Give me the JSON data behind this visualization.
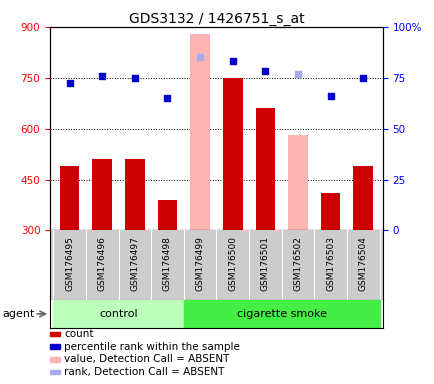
{
  "title": "GDS3132 / 1426751_s_at",
  "samples": [
    "GSM176495",
    "GSM176496",
    "GSM176497",
    "GSM176498",
    "GSM176499",
    "GSM176500",
    "GSM176501",
    "GSM176502",
    "GSM176503",
    "GSM176504"
  ],
  "count_values": [
    490,
    510,
    510,
    390,
    null,
    750,
    660,
    null,
    410,
    490
  ],
  "count_absent_values": [
    null,
    null,
    null,
    null,
    880,
    null,
    null,
    580,
    null,
    null
  ],
  "percentile_values": [
    735,
    755,
    750,
    690,
    null,
    800,
    770,
    null,
    695,
    750
  ],
  "percentile_absent_values": [
    null,
    null,
    null,
    null,
    810,
    null,
    null,
    760,
    null,
    null
  ],
  "ylim_left": [
    300,
    900
  ],
  "ylim_right": [
    0,
    100
  ],
  "yticks_left": [
    300,
    450,
    600,
    750,
    900
  ],
  "yticks_right": [
    0,
    25,
    50,
    75,
    100
  ],
  "ytick_labels_left": [
    "300",
    "450",
    "600",
    "750",
    "900"
  ],
  "ytick_labels_right": [
    "0",
    "25",
    "50",
    "75",
    "100%"
  ],
  "hlines": [
    450,
    600,
    750
  ],
  "group_control_indices": [
    0,
    1,
    2,
    3
  ],
  "group_smoke_indices": [
    4,
    5,
    6,
    7,
    8,
    9
  ],
  "group_control_label": "control",
  "group_smoke_label": "cigarette smoke",
  "agent_label": "agent",
  "bar_width": 0.6,
  "color_count": "#cc0000",
  "color_absent_bar": "#ffb3b3",
  "color_percentile": "#0000cc",
  "color_absent_rank": "#aaaaee",
  "legend_items": [
    {
      "color": "#cc0000",
      "label": "count"
    },
    {
      "color": "#0000cc",
      "label": "percentile rank within the sample"
    },
    {
      "color": "#ffb3b3",
      "label": "value, Detection Call = ABSENT"
    },
    {
      "color": "#aaaaee",
      "label": "rank, Detection Call = ABSENT"
    }
  ],
  "bg_plot": "#ffffff",
  "bg_xlabel": "#cccccc",
  "bg_control": "#bbffbb",
  "bg_smoke": "#44ee44",
  "title_fontsize": 10,
  "tick_fontsize": 7.5,
  "label_fontsize": 6.5,
  "legend_fontsize": 7.5,
  "agent_fontsize": 8
}
